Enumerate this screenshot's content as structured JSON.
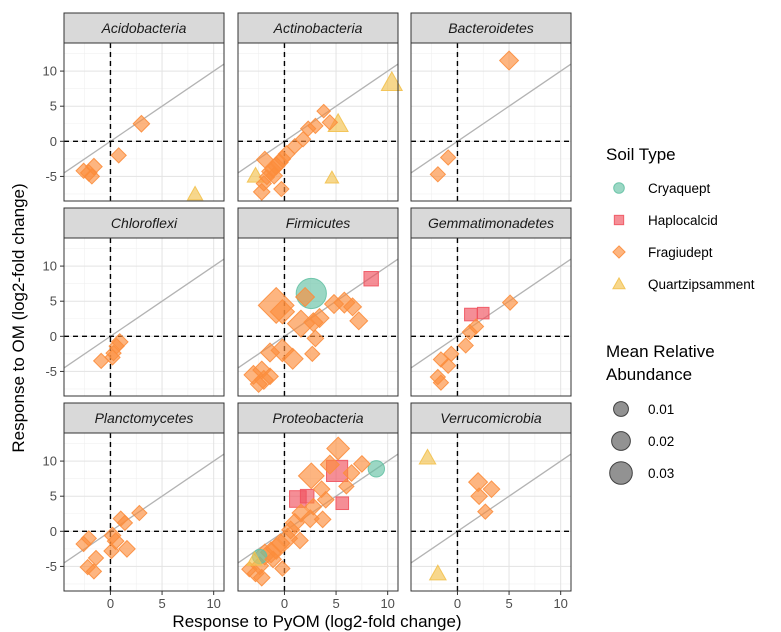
{
  "chart_data": {
    "type": "scatter",
    "facet_by": "Phylum",
    "facets": [
      {
        "name": "Acidobacteria",
        "points": [
          {
            "x": 3.0,
            "y": 2.5,
            "soil": "Fragiudept",
            "abund": 0.004
          },
          {
            "x": 0.8,
            "y": -2.0,
            "soil": "Fragiudept",
            "abund": 0.003
          },
          {
            "x": -1.6,
            "y": -3.6,
            "soil": "Fragiudept",
            "abund": 0.004
          },
          {
            "x": -2.1,
            "y": -4.5,
            "soil": "Fragiudept",
            "abund": 0.004
          },
          {
            "x": -2.6,
            "y": -4.2,
            "soil": "Fragiudept",
            "abund": 0.003
          },
          {
            "x": -1.8,
            "y": -5.0,
            "soil": "Fragiudept",
            "abund": 0.003
          },
          {
            "x": 8.2,
            "y": -7.5,
            "soil": "Quartzipsamment",
            "abund": 0.003
          }
        ]
      },
      {
        "name": "Actinobacteria",
        "points": [
          {
            "x": 10.4,
            "y": 8.4,
            "soil": "Quartzipsamment",
            "abund": 0.008
          },
          {
            "x": 5.2,
            "y": 2.5,
            "soil": "Quartzipsamment",
            "abund": 0.007
          },
          {
            "x": 4.6,
            "y": -5.2,
            "soil": "Quartzipsamment",
            "abund": 0.002
          },
          {
            "x": -2.8,
            "y": -4.9,
            "soil": "Quartzipsamment",
            "abund": 0.004
          },
          {
            "x": 3.8,
            "y": 4.3,
            "soil": "Fragiudept",
            "abund": 0.002
          },
          {
            "x": 4.4,
            "y": 2.7,
            "soil": "Fragiudept",
            "abund": 0.003
          },
          {
            "x": 3.0,
            "y": 2.2,
            "soil": "Fragiudept",
            "abund": 0.003
          },
          {
            "x": 2.3,
            "y": 1.8,
            "soil": "Fragiudept",
            "abund": 0.003
          },
          {
            "x": 1.8,
            "y": 0.3,
            "soil": "Fragiudept",
            "abund": 0.003
          },
          {
            "x": 1.0,
            "y": -0.7,
            "soil": "Fragiudept",
            "abund": 0.003
          },
          {
            "x": 0.2,
            "y": -1.8,
            "soil": "Fragiudept",
            "abund": 0.004
          },
          {
            "x": -0.2,
            "y": -2.5,
            "soil": "Fragiudept",
            "abund": 0.004
          },
          {
            "x": -0.5,
            "y": -3.0,
            "soil": "Fragiudept",
            "abund": 0.005
          },
          {
            "x": -0.8,
            "y": -3.5,
            "soil": "Fragiudept",
            "abund": 0.005
          },
          {
            "x": -1.1,
            "y": -4.0,
            "soil": "Fragiudept",
            "abund": 0.004
          },
          {
            "x": -1.4,
            "y": -4.3,
            "soil": "Fragiudept",
            "abund": 0.004
          },
          {
            "x": -1.0,
            "y": -4.9,
            "soil": "Fragiudept",
            "abund": 0.004
          },
          {
            "x": -1.7,
            "y": -5.1,
            "soil": "Fragiudept",
            "abund": 0.003
          },
          {
            "x": -2.0,
            "y": -6.0,
            "soil": "Fragiudept",
            "abund": 0.003
          },
          {
            "x": -2.2,
            "y": -7.2,
            "soil": "Fragiudept",
            "abund": 0.004
          },
          {
            "x": -1.9,
            "y": -2.6,
            "soil": "Fragiudept",
            "abund": 0.004
          },
          {
            "x": -0.3,
            "y": -6.8,
            "soil": "Fragiudept",
            "abund": 0.003
          }
        ]
      },
      {
        "name": "Bacteroidetes",
        "points": [
          {
            "x": 5.0,
            "y": 11.5,
            "soil": "Fragiudept",
            "abund": 0.006
          },
          {
            "x": -0.9,
            "y": -2.3,
            "soil": "Fragiudept",
            "abund": 0.003
          },
          {
            "x": -1.9,
            "y": -4.7,
            "soil": "Fragiudept",
            "abund": 0.003
          }
        ]
      },
      {
        "name": "Chloroflexi",
        "points": [
          {
            "x": 0.9,
            "y": -0.8,
            "soil": "Fragiudept",
            "abund": 0.004
          },
          {
            "x": 0.6,
            "y": -1.4,
            "soil": "Fragiudept",
            "abund": 0.003
          },
          {
            "x": 0.3,
            "y": -2.4,
            "soil": "Fragiudept",
            "abund": 0.003
          },
          {
            "x": 0.2,
            "y": -3.0,
            "soil": "Fragiudept",
            "abund": 0.003
          },
          {
            "x": -0.9,
            "y": -3.5,
            "soil": "Fragiudept",
            "abund": 0.003
          }
        ]
      },
      {
        "name": "Firmicutes",
        "points": [
          {
            "x": 2.6,
            "y": 6.1,
            "soil": "Cryaquept",
            "abund": 0.03
          },
          {
            "x": 8.4,
            "y": 8.2,
            "soil": "Haplocalcid",
            "abund": 0.006
          },
          {
            "x": 2.0,
            "y": 5.6,
            "soil": "Fragiudept",
            "abund": 0.006
          },
          {
            "x": -0.8,
            "y": 4.4,
            "soil": "Fragiudept",
            "abund": 0.032
          },
          {
            "x": -0.2,
            "y": 3.5,
            "soil": "Fragiudept",
            "abund": 0.012
          },
          {
            "x": 1.6,
            "y": 1.8,
            "soil": "Fragiudept",
            "abund": 0.016
          },
          {
            "x": 2.8,
            "y": 2.0,
            "soil": "Fragiudept",
            "abund": 0.006
          },
          {
            "x": 3.4,
            "y": 2.6,
            "soil": "Fragiudept",
            "abund": 0.006
          },
          {
            "x": 4.8,
            "y": 4.6,
            "soil": "Fragiudept",
            "abund": 0.006
          },
          {
            "x": 5.8,
            "y": 4.8,
            "soil": "Fragiudept",
            "abund": 0.008
          },
          {
            "x": 6.6,
            "y": 4.2,
            "soil": "Fragiudept",
            "abund": 0.005
          },
          {
            "x": 7.2,
            "y": 2.2,
            "soil": "Fragiudept",
            "abund": 0.005
          },
          {
            "x": 3.0,
            "y": -0.3,
            "soil": "Fragiudept",
            "abund": 0.004
          },
          {
            "x": -1.4,
            "y": -2.3,
            "soil": "Fragiudept",
            "abund": 0.006
          },
          {
            "x": -0.2,
            "y": -2.0,
            "soil": "Fragiudept",
            "abund": 0.01
          },
          {
            "x": 0.8,
            "y": -3.2,
            "soil": "Fragiudept",
            "abund": 0.008
          },
          {
            "x": 2.7,
            "y": -2.5,
            "soil": "Fragiudept",
            "abund": 0.003
          },
          {
            "x": -2.2,
            "y": -4.8,
            "soil": "Fragiudept",
            "abund": 0.005
          },
          {
            "x": -3.0,
            "y": -5.5,
            "soil": "Fragiudept",
            "abund": 0.006
          },
          {
            "x": -2.0,
            "y": -6.2,
            "soil": "Fragiudept",
            "abund": 0.006
          },
          {
            "x": -2.5,
            "y": -6.8,
            "soil": "Fragiudept",
            "abund": 0.004
          },
          {
            "x": -1.4,
            "y": -5.7,
            "soil": "Fragiudept",
            "abund": 0.004
          }
        ]
      },
      {
        "name": "Gemmatimonadetes",
        "points": [
          {
            "x": 1.3,
            "y": 3.1,
            "soil": "Haplocalcid",
            "abund": 0.004
          },
          {
            "x": 2.5,
            "y": 3.3,
            "soil": "Haplocalcid",
            "abund": 0.003
          },
          {
            "x": 5.1,
            "y": 4.8,
            "soil": "Fragiudept",
            "abund": 0.003
          },
          {
            "x": 1.8,
            "y": 1.4,
            "soil": "Fragiudept",
            "abund": 0.003
          },
          {
            "x": 1.2,
            "y": 0.6,
            "soil": "Fragiudept",
            "abund": 0.003
          },
          {
            "x": 0.8,
            "y": -1.3,
            "soil": "Fragiudept",
            "abund": 0.003
          },
          {
            "x": -0.6,
            "y": -2.5,
            "soil": "Fragiudept",
            "abund": 0.003
          },
          {
            "x": -1.6,
            "y": -3.3,
            "soil": "Fragiudept",
            "abund": 0.003
          },
          {
            "x": -0.9,
            "y": -4.2,
            "soil": "Fragiudept",
            "abund": 0.003
          },
          {
            "x": -1.9,
            "y": -5.8,
            "soil": "Fragiudept",
            "abund": 0.003
          },
          {
            "x": -1.6,
            "y": -6.6,
            "soil": "Fragiudept",
            "abund": 0.003
          }
        ]
      },
      {
        "name": "Planctomycetes",
        "points": [
          {
            "x": 2.8,
            "y": 2.6,
            "soil": "Fragiudept",
            "abund": 0.003
          },
          {
            "x": 1.0,
            "y": 1.8,
            "soil": "Fragiudept",
            "abund": 0.003
          },
          {
            "x": 1.4,
            "y": 1.2,
            "soil": "Fragiudept",
            "abund": 0.003
          },
          {
            "x": 0.2,
            "y": -0.6,
            "soil": "Fragiudept",
            "abund": 0.004
          },
          {
            "x": 0.5,
            "y": -1.4,
            "soil": "Fragiudept",
            "abund": 0.004
          },
          {
            "x": 1.6,
            "y": -2.5,
            "soil": "Fragiudept",
            "abund": 0.004
          },
          {
            "x": 0.1,
            "y": -2.8,
            "soil": "Fragiudept",
            "abund": 0.003
          },
          {
            "x": -2.1,
            "y": -1.0,
            "soil": "Fragiudept",
            "abund": 0.003
          },
          {
            "x": -2.6,
            "y": -1.8,
            "soil": "Fragiudept",
            "abund": 0.003
          },
          {
            "x": -1.4,
            "y": -3.8,
            "soil": "Fragiudept",
            "abund": 0.003
          },
          {
            "x": -2.2,
            "y": -5.1,
            "soil": "Fragiudept",
            "abund": 0.003
          },
          {
            "x": -1.6,
            "y": -5.7,
            "soil": "Fragiudept",
            "abund": 0.003
          }
        ]
      },
      {
        "name": "Proteobacteria",
        "points": [
          {
            "x": 8.9,
            "y": 8.9,
            "soil": "Cryaquept",
            "abund": 0.006
          },
          {
            "x": -2.4,
            "y": -3.6,
            "soil": "Cryaquept",
            "abund": 0.004
          },
          {
            "x": 5.1,
            "y": 8.6,
            "soil": "Haplocalcid",
            "abund": 0.017
          },
          {
            "x": 1.3,
            "y": 4.6,
            "soil": "Haplocalcid",
            "abund": 0.009
          },
          {
            "x": 2.2,
            "y": 5.0,
            "soil": "Haplocalcid",
            "abund": 0.005
          },
          {
            "x": 5.6,
            "y": 4.0,
            "soil": "Haplocalcid",
            "abund": 0.004
          },
          {
            "x": 5.2,
            "y": 11.8,
            "soil": "Fragiudept",
            "abund": 0.01
          },
          {
            "x": 2.6,
            "y": 7.9,
            "soil": "Fragiudept",
            "abund": 0.014
          },
          {
            "x": 4.4,
            "y": 9.5,
            "soil": "Fragiudept",
            "abund": 0.006
          },
          {
            "x": 6.5,
            "y": 8.3,
            "soil": "Fragiudept",
            "abund": 0.004
          },
          {
            "x": 7.5,
            "y": 9.6,
            "soil": "Fragiudept",
            "abund": 0.004
          },
          {
            "x": 3.6,
            "y": 6.0,
            "soil": "Fragiudept",
            "abund": 0.004
          },
          {
            "x": 6.0,
            "y": 6.4,
            "soil": "Fragiudept",
            "abund": 0.003
          },
          {
            "x": 4.0,
            "y": 4.5,
            "soil": "Fragiudept",
            "abund": 0.004
          },
          {
            "x": 2.8,
            "y": 3.5,
            "soil": "Fragiudept",
            "abund": 0.004
          },
          {
            "x": 1.6,
            "y": 2.6,
            "soil": "Fragiudept",
            "abund": 0.005
          },
          {
            "x": 2.5,
            "y": 1.8,
            "soil": "Fragiudept",
            "abund": 0.005
          },
          {
            "x": 1.0,
            "y": 1.2,
            "soil": "Fragiudept",
            "abund": 0.006
          },
          {
            "x": 3.7,
            "y": 1.7,
            "soil": "Fragiudept",
            "abund": 0.004
          },
          {
            "x": 0.6,
            "y": 0.2,
            "soil": "Fragiudept",
            "abund": 0.005
          },
          {
            "x": 0.3,
            "y": -1.0,
            "soil": "Fragiudept",
            "abund": 0.007
          },
          {
            "x": -0.4,
            "y": -1.7,
            "soil": "Fragiudept",
            "abund": 0.006
          },
          {
            "x": 1.5,
            "y": -1.3,
            "soil": "Fragiudept",
            "abund": 0.004
          },
          {
            "x": -0.8,
            "y": -2.5,
            "soil": "Fragiudept",
            "abund": 0.008
          },
          {
            "x": -1.3,
            "y": -3.0,
            "soil": "Fragiudept",
            "abund": 0.008
          },
          {
            "x": -1.9,
            "y": -3.3,
            "soil": "Fragiudept",
            "abund": 0.008
          },
          {
            "x": -1.1,
            "y": -4.0,
            "soil": "Fragiudept",
            "abund": 0.004
          },
          {
            "x": -2.4,
            "y": -4.9,
            "soil": "Fragiudept",
            "abund": 0.005
          },
          {
            "x": -2.8,
            "y": -6.0,
            "soil": "Fragiudept",
            "abund": 0.004
          },
          {
            "x": -2.2,
            "y": -6.6,
            "soil": "Fragiudept",
            "abund": 0.004
          },
          {
            "x": -3.4,
            "y": -5.4,
            "soil": "Fragiudept",
            "abund": 0.003
          },
          {
            "x": -0.2,
            "y": -5.3,
            "soil": "Fragiudept",
            "abund": 0.003
          },
          {
            "x": -2.9,
            "y": -4.0,
            "soil": "Quartzipsamment",
            "abund": 0.003
          }
        ]
      },
      {
        "name": "Verrucomicrobia",
        "points": [
          {
            "x": -2.9,
            "y": 10.5,
            "soil": "Quartzipsamment",
            "abund": 0.004
          },
          {
            "x": -1.9,
            "y": -6.0,
            "soil": "Quartzipsamment",
            "abund": 0.004
          },
          {
            "x": 2.0,
            "y": 7.0,
            "soil": "Fragiudept",
            "abund": 0.006
          },
          {
            "x": 3.3,
            "y": 6.0,
            "soil": "Fragiudept",
            "abund": 0.004
          },
          {
            "x": 2.1,
            "y": 5.0,
            "soil": "Fragiudept",
            "abund": 0.004
          },
          {
            "x": 2.7,
            "y": 2.8,
            "soil": "Fragiudept",
            "abund": 0.003
          }
        ]
      }
    ],
    "xlabel": "Response to PyOM (log2-fold change)",
    "ylabel": "Response to OM (log2-fold change)",
    "xlim": [
      -4.5,
      11
    ],
    "ylim": [
      -8.5,
      14
    ],
    "xticks": [
      0,
      5,
      10
    ],
    "yticks": [
      -5,
      0,
      5,
      10
    ],
    "grid": true,
    "reference_lines": {
      "x": 0,
      "y": 0,
      "diagonal": "y = x"
    },
    "legend_position": "right",
    "legend": {
      "color_title": "Soil Type",
      "color_entries": [
        {
          "label": "Cryaquept",
          "shape": "circle",
          "color": "#66c2a5"
        },
        {
          "label": "Haplocalcid",
          "shape": "square",
          "color": "#f0525e"
        },
        {
          "label": "Fragiudept",
          "shape": "diamond",
          "color": "#fc8d3c"
        },
        {
          "label": "Quartzipsamment",
          "shape": "triangle",
          "color": "#f2c14e"
        }
      ],
      "size_title_line1": "Mean Relative",
      "size_title_line2": "Abundance",
      "size_entries": [
        {
          "label": "0.01",
          "value": 0.01
        },
        {
          "label": "0.02",
          "value": 0.02
        },
        {
          "label": "0.03",
          "value": 0.03
        }
      ]
    }
  }
}
